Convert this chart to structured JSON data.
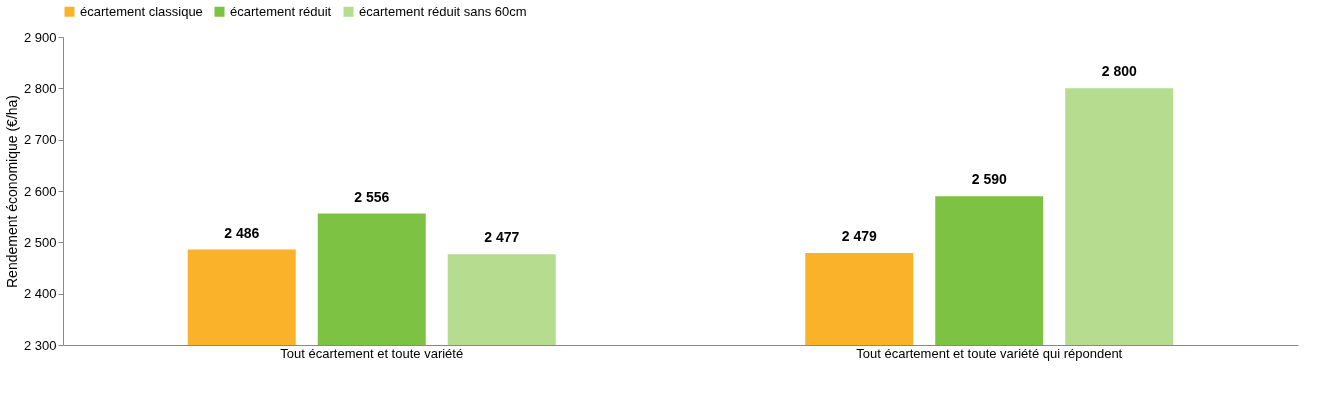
{
  "chart_data": {
    "type": "bar",
    "ylabel": "Rendement économique (€/ha)",
    "categories": [
      "Tout écartement et toute variété",
      "Tout écartement et toute variété qui répondent"
    ],
    "series": [
      {
        "name": "écartement classique",
        "color": "#fbb22b",
        "values": [
          2486,
          2479
        ],
        "value_labels": [
          "2 486",
          "2 479"
        ]
      },
      {
        "name": "écartement réduit",
        "color": "#7dc242",
        "values": [
          2556,
          2590
        ],
        "value_labels": [
          "2 556",
          "2 590"
        ]
      },
      {
        "name": "écartement réduit sans 60cm",
        "color": "#b5dc8f",
        "values": [
          2477,
          2800
        ],
        "value_labels": [
          "2 477",
          "2 800"
        ]
      }
    ],
    "ylim": [
      2300,
      2900
    ],
    "yticks": [
      {
        "value": 2300,
        "label": "2 300"
      },
      {
        "value": 2400,
        "label": "2 400"
      },
      {
        "value": 2500,
        "label": "2 500"
      },
      {
        "value": 2600,
        "label": "2 600"
      },
      {
        "value": 2700,
        "label": "2 700"
      },
      {
        "value": 2800,
        "label": "2 800"
      },
      {
        "value": 2900,
        "label": "2 900"
      }
    ],
    "grid": false,
    "legend": "top"
  }
}
